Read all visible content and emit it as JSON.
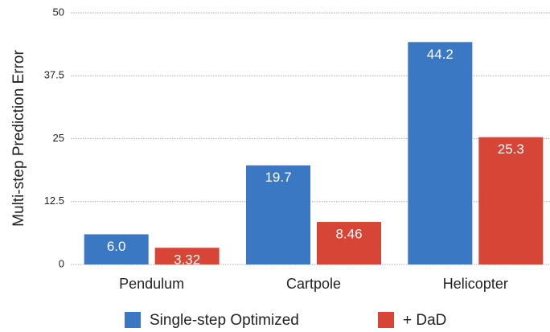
{
  "chart_data": {
    "type": "bar",
    "ylabel": "Multi-step Prediction Error",
    "categories": [
      "Pendulum",
      "Cartpole",
      "Helicopter"
    ],
    "series": [
      {
        "name": "Single-step Optimized",
        "color": "#3a78c3",
        "values": [
          6.0,
          19.7,
          44.2
        ],
        "value_labels": [
          "6.0",
          "19.7",
          "44.2"
        ]
      },
      {
        "name": "+ DaD",
        "color": "#d64535",
        "values": [
          3.32,
          8.46,
          25.3
        ]
      }
    ],
    "ylim": [
      0,
      50
    ],
    "yticks": [
      0,
      12.5,
      25,
      37.5,
      50
    ],
    "grid": true,
    "legend": "bottom"
  }
}
